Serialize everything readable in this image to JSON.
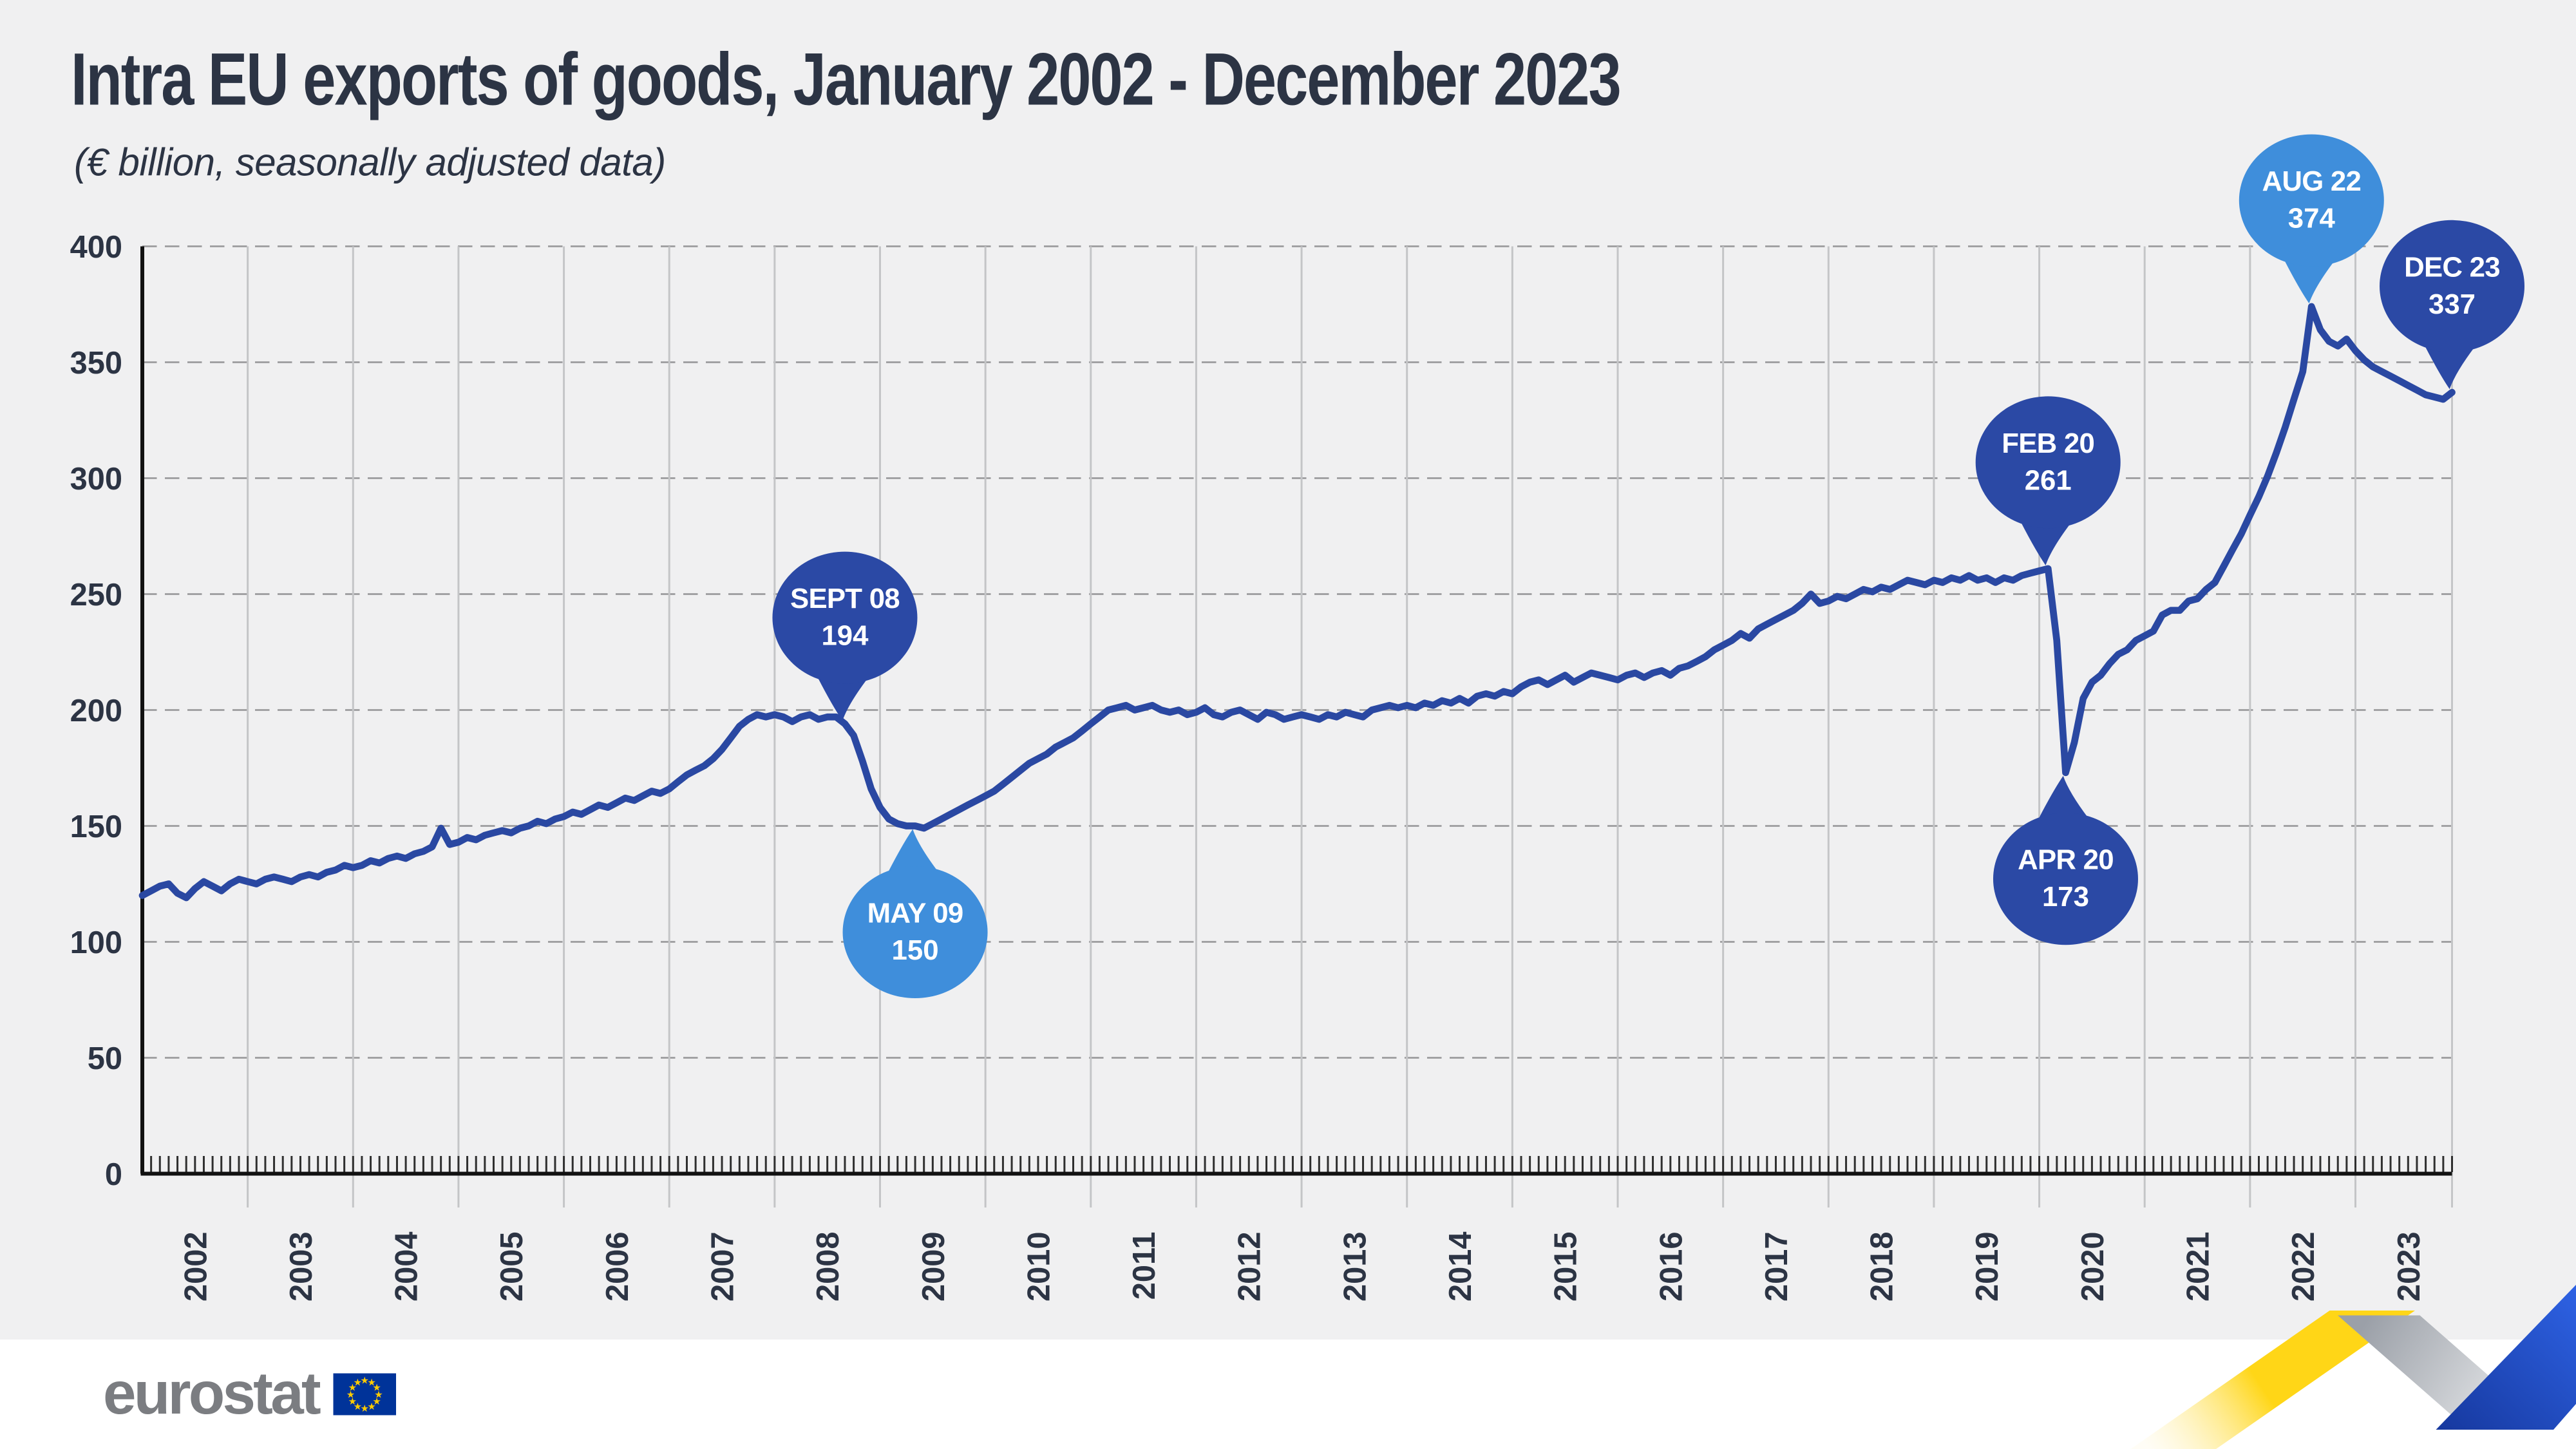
{
  "header": {
    "title": "Intra EU exports of goods, January 2002 - December 2023",
    "subtitle": "(€ billion, seasonally adjusted data)"
  },
  "footer": {
    "brand": "eurostat"
  },
  "colors": {
    "text": "#2c3444",
    "background": "#f0f0f1",
    "footer_bg": "#ffffff",
    "line": "#2a48a2",
    "bubble_dark": "#2b49a5",
    "bubble_light": "#3f8edb",
    "bubble_text": "#ffffff",
    "grid_vertical": "#c4c5c7",
    "grid_horizontal": "#9c9c9e",
    "axis": "#111111",
    "tick": "#2f2f2f",
    "brand_gray": "#7b7d81",
    "flag_blue": "#003399",
    "flag_yellow": "#ffcc00",
    "ribbon_yellow": "#ffd617",
    "ribbon_yellow_fade": "#fff3c4",
    "ribbon_gray_dark": "#9ba0a8",
    "ribbon_gray_light": "#f4f5f6",
    "ribbon_blue_dark": "#16389e",
    "ribbon_blue_light": "#2e62e4"
  },
  "chart_data": {
    "type": "line",
    "title": "Intra EU exports of goods, January 2002 - December 2023",
    "subtitle": "(€ billion, seasonally adjusted data)",
    "xlabel": "",
    "ylabel": "",
    "ylim": [
      0,
      400
    ],
    "y_ticks": [
      0,
      50,
      100,
      150,
      200,
      250,
      300,
      350,
      400
    ],
    "grid": {
      "vertical": "solid, one per year",
      "horizontal": "dashed, every 50"
    },
    "legend": "none",
    "x_monthly_from": "2002-01",
    "x_monthly_to": "2023-12",
    "years": [
      "2002",
      "2003",
      "2004",
      "2005",
      "2006",
      "2007",
      "2008",
      "2009",
      "2010",
      "2011",
      "2012",
      "2013",
      "2014",
      "2015",
      "2016",
      "2017",
      "2018",
      "2019",
      "2020",
      "2021",
      "2022",
      "2023"
    ],
    "values": [
      120,
      122,
      124,
      125,
      121,
      119,
      123,
      126,
      124,
      122,
      125,
      127,
      126,
      125,
      127,
      128,
      127,
      126,
      128,
      129,
      128,
      130,
      131,
      133,
      132,
      133,
      135,
      134,
      136,
      137,
      136,
      138,
      139,
      141,
      149,
      142,
      143,
      145,
      144,
      146,
      147,
      148,
      147,
      149,
      150,
      152,
      151,
      153,
      154,
      156,
      155,
      157,
      159,
      158,
      160,
      162,
      161,
      163,
      165,
      164,
      166,
      169,
      172,
      174,
      176,
      179,
      183,
      188,
      193,
      196,
      198,
      197,
      198,
      197,
      195,
      197,
      198,
      196,
      197,
      197,
      194,
      189,
      178,
      166,
      158,
      153,
      151,
      150,
      150,
      149,
      151,
      153,
      155,
      157,
      159,
      161,
      163,
      165,
      168,
      171,
      174,
      177,
      179,
      181,
      184,
      186,
      188,
      191,
      194,
      197,
      200,
      201,
      202,
      200,
      201,
      202,
      200,
      199,
      200,
      198,
      199,
      201,
      198,
      197,
      199,
      200,
      198,
      196,
      199,
      198,
      196,
      197,
      198,
      197,
      196,
      198,
      197,
      199,
      198,
      197,
      200,
      201,
      202,
      201,
      202,
      201,
      203,
      202,
      204,
      203,
      205,
      203,
      206,
      207,
      206,
      208,
      207,
      210,
      212,
      213,
      211,
      213,
      215,
      212,
      214,
      216,
      215,
      214,
      213,
      215,
      216,
      214,
      216,
      217,
      215,
      218,
      219,
      221,
      223,
      226,
      228,
      230,
      233,
      231,
      235,
      237,
      239,
      241,
      243,
      246,
      250,
      246,
      247,
      249,
      248,
      250,
      252,
      251,
      253,
      252,
      254,
      256,
      255,
      254,
      256,
      255,
      257,
      256,
      258,
      256,
      257,
      255,
      257,
      256,
      258,
      259,
      260,
      261,
      230,
      173,
      186,
      205,
      212,
      215,
      220,
      224,
      226,
      230,
      232,
      234,
      241,
      243,
      243,
      247,
      248,
      252,
      255,
      262,
      269,
      276,
      284,
      292,
      301,
      311,
      322,
      334,
      346,
      374,
      364,
      359,
      357,
      360,
      355,
      351,
      348,
      346,
      344,
      342,
      340,
      338,
      336,
      335,
      334,
      337
    ],
    "callouts": [
      {
        "label": "SEPT 08",
        "value": 194,
        "month_index": 80,
        "style": "dark",
        "tip": "down"
      },
      {
        "label": "MAY 09",
        "value": 150,
        "month_index": 88,
        "style": "light",
        "tip": "up"
      },
      {
        "label": "FEB 20",
        "value": 261,
        "month_index": 217,
        "style": "dark",
        "tip": "down"
      },
      {
        "label": "APR 20",
        "value": 173,
        "month_index": 219,
        "style": "dark",
        "tip": "up"
      },
      {
        "label": "AUG 22",
        "value": 374,
        "month_index": 247,
        "style": "light",
        "tip": "down"
      },
      {
        "label": "DEC 23",
        "value": 337,
        "month_index": 263,
        "style": "dark",
        "tip": "down"
      }
    ]
  }
}
